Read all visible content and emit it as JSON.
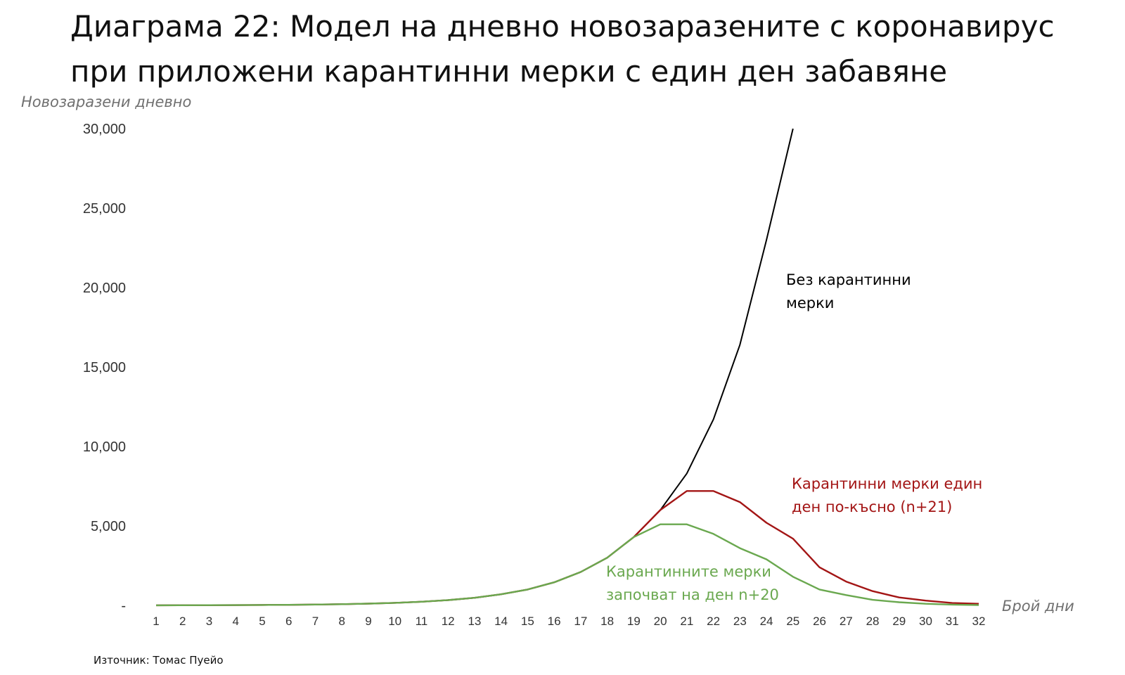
{
  "title_line1": "Диаграма 22: Модел на дневно новозаразените с коронавирус",
  "title_line2": "при приложени карантинни мерки с един ден забавяне",
  "source": "Източник: Томас Пуейо",
  "colors": {
    "black_series": "#000000",
    "red_series": "#a31515",
    "green_series": "#6aa84f",
    "axis_text": "#333333"
  },
  "chart_data": {
    "type": "line",
    "ylabel": "Новозаразени дневно",
    "xlabel": "Брой дни",
    "ylim": [
      0,
      30000
    ],
    "yticks": [
      0,
      5000,
      10000,
      15000,
      20000,
      25000,
      30000
    ],
    "ytick_labels": [
      "-",
      "5,000",
      "10,000",
      "15,000",
      "20,000",
      "25,000",
      "30,000"
    ],
    "x": [
      1,
      2,
      3,
      4,
      5,
      6,
      7,
      8,
      9,
      10,
      11,
      12,
      13,
      14,
      15,
      16,
      17,
      18,
      19,
      20,
      21,
      22,
      23,
      24,
      25,
      26,
      27,
      28,
      29,
      30,
      31,
      32
    ],
    "series": [
      {
        "name": "Без карантинни мерки",
        "color": "#000000",
        "x": [
          1,
          2,
          3,
          4,
          5,
          6,
          7,
          8,
          9,
          10,
          11,
          12,
          13,
          14,
          15,
          16,
          17,
          18,
          19,
          20,
          21,
          22,
          23,
          24,
          25
        ],
        "values": [
          5,
          8,
          12,
          17,
          25,
          36,
          52,
          75,
          110,
          160,
          230,
          330,
          480,
          700,
          1000,
          1450,
          2100,
          3000,
          4300,
          6000,
          8300,
          11700,
          16400,
          23000,
          30000
        ]
      },
      {
        "name": "Карантинни мерки един ден по-късно (n+21)",
        "color": "#a31515",
        "x": [
          1,
          2,
          3,
          4,
          5,
          6,
          7,
          8,
          9,
          10,
          11,
          12,
          13,
          14,
          15,
          16,
          17,
          18,
          19,
          20,
          21,
          22,
          23,
          24,
          25,
          26,
          27,
          28,
          29,
          30,
          31,
          32
        ],
        "values": [
          5,
          8,
          12,
          17,
          25,
          36,
          52,
          75,
          110,
          160,
          230,
          330,
          480,
          700,
          1000,
          1450,
          2100,
          3000,
          4300,
          6000,
          7200,
          7200,
          6500,
          5200,
          4200,
          2400,
          1500,
          900,
          500,
          300,
          150,
          100
        ]
      },
      {
        "name": "Карантинните мерки започват на ден n+20",
        "color": "#6aa84f",
        "x": [
          1,
          2,
          3,
          4,
          5,
          6,
          7,
          8,
          9,
          10,
          11,
          12,
          13,
          14,
          15,
          16,
          17,
          18,
          19,
          20,
          21,
          22,
          23,
          24,
          25,
          26,
          27,
          28,
          29,
          30,
          31,
          32
        ],
        "values": [
          5,
          8,
          12,
          17,
          25,
          36,
          52,
          75,
          110,
          160,
          230,
          330,
          480,
          700,
          1000,
          1450,
          2100,
          3000,
          4300,
          5100,
          5100,
          4500,
          3600,
          2900,
          1800,
          1000,
          650,
          350,
          200,
          100,
          50,
          20
        ]
      }
    ],
    "annotations": [
      {
        "lines": [
          "Без карантинни",
          "мерки"
        ],
        "color": "#000000"
      },
      {
        "lines": [
          "Карантинни мерки един",
          "ден по-късно (n+21)"
        ],
        "color": "#a31515"
      },
      {
        "lines": [
          "Карантинните мерки",
          "започват на ден n+20"
        ],
        "color": "#6aa84f"
      }
    ]
  }
}
